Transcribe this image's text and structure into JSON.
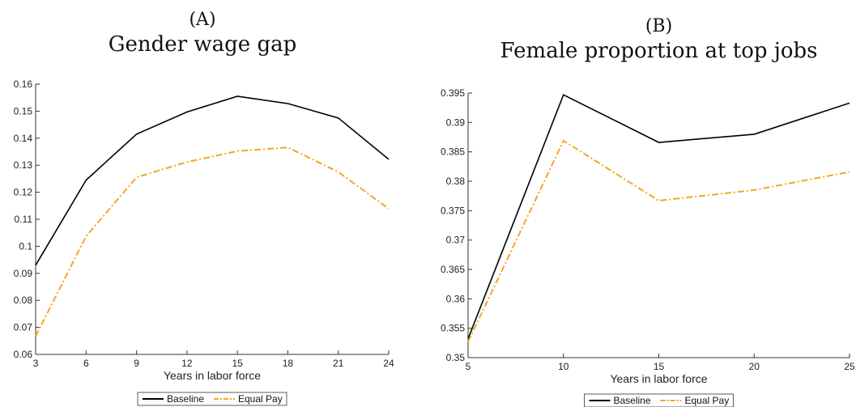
{
  "panels": [
    {
      "label": "(A)",
      "title": "Gender wage gap",
      "xlabel": "Years in labor force",
      "legend": [
        "Baseline",
        "Equal Pay"
      ]
    },
    {
      "label": "(B)",
      "title": "Female proportion at top jobs",
      "xlabel": "Years in labor force",
      "legend": [
        "Baseline",
        "Equal Pay"
      ]
    }
  ],
  "chart_data": [
    {
      "type": "line",
      "title": "Gender wage gap",
      "xlabel": "Years in labor force",
      "ylabel": "",
      "x": [
        3,
        6,
        9,
        12,
        15,
        18,
        21,
        24
      ],
      "xlim": [
        3,
        24
      ],
      "ylim": [
        0.06,
        0.16
      ],
      "xticks": [
        "3",
        "6",
        "9",
        "12",
        "15",
        "18",
        "21",
        "24"
      ],
      "yticks": [
        "0.06",
        "0.07",
        "0.08",
        "0.09",
        "0.1",
        "0.11",
        "0.12",
        "0.13",
        "0.14",
        "0.15",
        "0.16"
      ],
      "legend_position": "bottom-center",
      "grid": false,
      "series": [
        {
          "name": "Baseline",
          "values": [
            0.093,
            0.1245,
            0.1415,
            0.1497,
            0.1555,
            0.1528,
            0.1475,
            0.1322
          ],
          "color": "#000000",
          "style": "solid"
        },
        {
          "name": "Equal Pay",
          "values": [
            0.0667,
            0.1037,
            0.1255,
            0.1312,
            0.1352,
            0.1366,
            0.1275,
            0.1139
          ],
          "color": "#F5A623",
          "style": "dashdot"
        }
      ]
    },
    {
      "type": "line",
      "title": "Female proportion at top jobs",
      "xlabel": "Years in labor force",
      "ylabel": "",
      "x": [
        5,
        10,
        15,
        20,
        25
      ],
      "xlim": [
        5,
        25
      ],
      "ylim": [
        0.35,
        0.395
      ],
      "xticks": [
        "5",
        "10",
        "15",
        "20",
        "25"
      ],
      "yticks": [
        "0.35",
        "0.355",
        "0.36",
        "0.365",
        "0.37",
        "0.375",
        "0.38",
        "0.385",
        "0.39",
        "0.395"
      ],
      "legend_position": "bottom-center",
      "grid": false,
      "series": [
        {
          "name": "Baseline",
          "values": [
            0.3532,
            0.3947,
            0.3866,
            0.388,
            0.3933
          ],
          "color": "#000000",
          "style": "solid"
        },
        {
          "name": "Equal Pay",
          "values": [
            0.3527,
            0.3869,
            0.3767,
            0.3785,
            0.3816
          ],
          "color": "#F5A623",
          "style": "dashdot"
        }
      ]
    }
  ]
}
